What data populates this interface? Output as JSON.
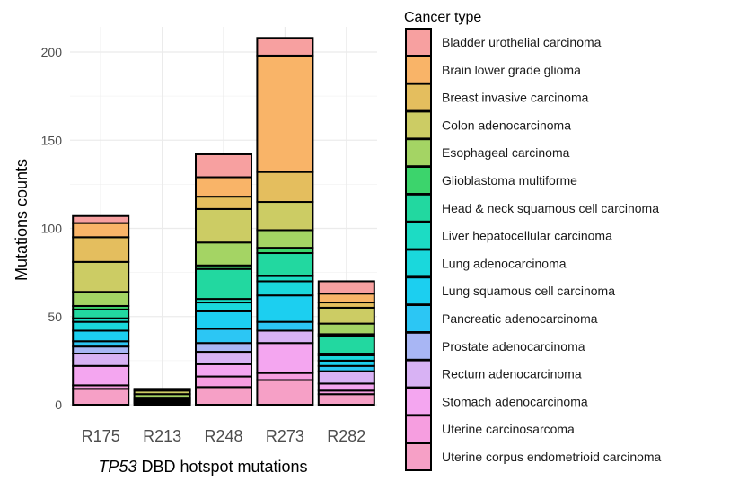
{
  "chart_data": {
    "type": "bar",
    "stacked": true,
    "title": "",
    "xlabel_italic": "TP53",
    "xlabel_rest": " DBD hotspot mutations",
    "ylabel": "Mutations counts",
    "ylim": [
      0,
      210
    ],
    "yticks": [
      0,
      50,
      100,
      150,
      200
    ],
    "grid": true,
    "categories": [
      "R175",
      "R213",
      "R248",
      "R273",
      "R282"
    ],
    "legend": {
      "title": "Cancer type",
      "position": "right",
      "entries": [
        {
          "name": "Bladder urothelial carcinoma",
          "color": "#f7a0a0"
        },
        {
          "name": "Brain lower grade glioma",
          "color": "#f9b468"
        },
        {
          "name": "Breast invasive carcinoma",
          "color": "#e4be5e"
        },
        {
          "name": "Colon adenocarcinoma",
          "color": "#cccc64"
        },
        {
          "name": "Esophageal carcinoma",
          "color": "#a4d464"
        },
        {
          "name": "Glioblastoma multiforme",
          "color": "#3cd46c"
        },
        {
          "name": "Head & neck squamous cell carcinoma",
          "color": "#22d8a0"
        },
        {
          "name": "Liver hepatocellular carcinoma",
          "color": "#1cdcc4"
        },
        {
          "name": "Lung adenocarcinoma",
          "color": "#1ad8dc"
        },
        {
          "name": "Lung squamous cell carcinoma",
          "color": "#1ccff0"
        },
        {
          "name": "Pancreatic adenocarcinoma",
          "color": "#2cc6f4"
        },
        {
          "name": "Prostate adenocarcinoma",
          "color": "#a8b6f4"
        },
        {
          "name": "Rectum adenocarcinoma",
          "color": "#d8b2f4"
        },
        {
          "name": "Stomach adenocarcinoma",
          "color": "#f4a6f0"
        },
        {
          "name": "Uterine carcinosarcoma",
          "color": "#f69ee0"
        },
        {
          "name": "Uterine corpus endometrioid carcinoma",
          "color": "#f6a0c6"
        }
      ]
    },
    "series": [
      {
        "name": "Uterine corpus endometrioid carcinoma",
        "values": [
          9,
          0,
          10,
          14,
          6
        ]
      },
      {
        "name": "Uterine carcinosarcoma",
        "values": [
          2,
          0,
          6,
          4,
          2
        ]
      },
      {
        "name": "Stomach adenocarcinoma",
        "values": [
          11,
          0,
          7,
          17,
          4
        ]
      },
      {
        "name": "Rectum adenocarcinoma",
        "values": [
          7,
          0,
          7,
          7,
          7
        ]
      },
      {
        "name": "Prostate adenocarcinoma",
        "values": [
          4,
          0,
          5,
          0,
          0
        ]
      },
      {
        "name": "Pancreatic adenocarcinoma",
        "values": [
          3,
          0,
          8,
          5,
          3
        ]
      },
      {
        "name": "Lung squamous cell carcinoma",
        "values": [
          6,
          0,
          10,
          15,
          3
        ]
      },
      {
        "name": "Lung adenocarcinoma",
        "values": [
          5,
          1,
          5,
          8,
          3
        ]
      },
      {
        "name": "Liver hepatocellular carcinoma",
        "values": [
          2,
          1,
          2,
          3,
          1
        ]
      },
      {
        "name": "Head & neck squamous cell carcinoma",
        "values": [
          5,
          1,
          17,
          13,
          10
        ]
      },
      {
        "name": "Glioblastoma multiforme",
        "values": [
          2,
          1,
          2,
          3,
          1
        ]
      },
      {
        "name": "Esophageal carcinoma",
        "values": [
          8,
          2,
          13,
          10,
          6
        ]
      },
      {
        "name": "Colon adenocarcinoma",
        "values": [
          17,
          2,
          19,
          16,
          9
        ]
      },
      {
        "name": "Breast invasive carcinoma",
        "values": [
          14,
          1,
          7,
          17,
          3
        ]
      },
      {
        "name": "Brain lower grade glioma",
        "values": [
          8,
          0,
          11,
          66,
          5
        ]
      },
      {
        "name": "Bladder urothelial carcinoma",
        "values": [
          4,
          0,
          13,
          10,
          7
        ]
      }
    ]
  }
}
